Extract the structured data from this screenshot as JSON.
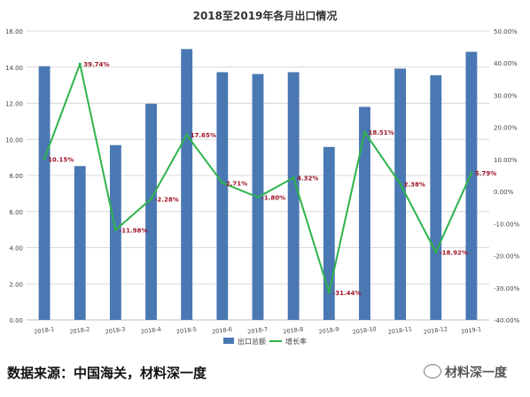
{
  "chart_data": {
    "type": "bar",
    "title": "2018至2019年各月出口情况",
    "categories": [
      "2018-1",
      "2018-2",
      "2018-3",
      "2018-4",
      "2018-5",
      "2018-6",
      "2018-7",
      "2018-8",
      "2018-9",
      "2018-10",
      "2018-11",
      "2018-12",
      "2019-1"
    ],
    "series": [
      {
        "name": "出口总额",
        "type": "bar",
        "axis": "left",
        "color": "#4a78b3",
        "values": [
          14.05,
          8.52,
          9.68,
          11.97,
          15.0,
          13.72,
          13.62,
          13.72,
          9.58,
          11.8,
          13.92,
          13.55,
          14.85
        ]
      },
      {
        "name": "增长率",
        "type": "line",
        "axis": "right",
        "color": "#2db34a",
        "values": [
          10.15,
          39.74,
          -11.98,
          -2.28,
          17.65,
          2.71,
          -1.8,
          4.32,
          -31.44,
          18.51,
          2.38,
          -18.92,
          5.79
        ],
        "labels": [
          "10.15%",
          "39.74%",
          "-11.98%",
          "-2.28%",
          "17.65%",
          "2.71%",
          "-1.80%",
          "4.32%",
          "-31.44%",
          "18.51%",
          "2.38%",
          "-18.92%",
          "5.79%"
        ]
      }
    ],
    "y_left": {
      "min": 0,
      "max": 16,
      "step": 2,
      "ticks": [
        "0.00",
        "2.00",
        "4.00",
        "6.00",
        "8.00",
        "10.00",
        "12.00",
        "14.00",
        "16.00"
      ]
    },
    "y_right": {
      "min": -40,
      "max": 50,
      "step": 10,
      "ticks": [
        "-40.00%",
        "-30.00%",
        "-20.00%",
        "-10.00%",
        "0.00%",
        "10.00%",
        "20.00%",
        "30.00%",
        "40.00%",
        "50.00%"
      ]
    },
    "grid": true,
    "legend": "bottom"
  },
  "footer": {
    "source": "数据来源：中国海关，材料深一度",
    "brand": "材料深一度"
  }
}
